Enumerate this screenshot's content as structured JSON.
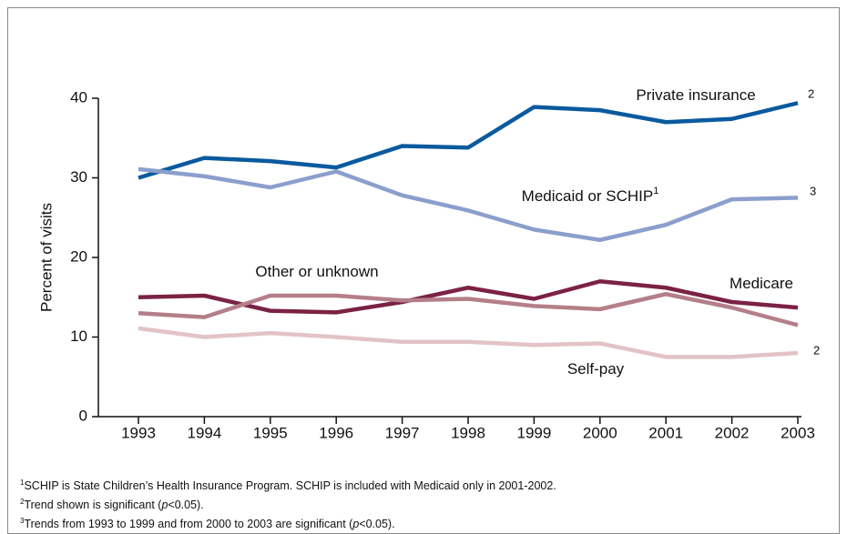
{
  "chart_data": {
    "type": "line",
    "y_label": "Percent of visits",
    "x": [
      1993,
      1994,
      1995,
      1996,
      1997,
      1998,
      1999,
      2000,
      2001,
      2002,
      2003
    ],
    "xlim": [
      1993,
      2003
    ],
    "xticks": [
      1993,
      1994,
      1995,
      1996,
      1997,
      1998,
      1999,
      2000,
      2001,
      2002,
      2003
    ],
    "ylim": [
      0,
      40
    ],
    "yticks": [
      0,
      10,
      20,
      30,
      40
    ],
    "grid": false,
    "series": [
      {
        "name": "Private insurance",
        "end_note": "2",
        "color": "#0a5a9e",
        "values": [
          30.0,
          32.5,
          32.1,
          31.3,
          34.0,
          33.8,
          38.9,
          38.5,
          37.0,
          37.4,
          39.4
        ]
      },
      {
        "name": "Medicaid or SCHIP",
        "name_sup": "1",
        "end_note": "3",
        "color": "#8b9fcd",
        "values": [
          31.1,
          30.2,
          28.8,
          30.8,
          27.8,
          25.9,
          23.5,
          22.2,
          24.1,
          27.3,
          27.5
        ]
      },
      {
        "name": "Medicare",
        "color": "#7b2244",
        "values": [
          15.0,
          15.2,
          13.3,
          13.1,
          14.4,
          16.2,
          14.8,
          17.0,
          16.2,
          14.4,
          13.7
        ]
      },
      {
        "name": "Other or unknown",
        "color": "#b47f88",
        "values": [
          13.0,
          12.5,
          15.2,
          15.2,
          14.6,
          14.8,
          13.9,
          13.5,
          15.4,
          13.7,
          11.5
        ]
      },
      {
        "name": "Self-pay",
        "end_note": "2",
        "color": "#e3c3c7",
        "values": [
          11.1,
          10.0,
          10.5,
          10.0,
          9.4,
          9.4,
          9.0,
          9.2,
          7.5,
          7.5,
          8.0
        ]
      }
    ],
    "footnotes": [
      {
        "mark": "1",
        "parts": [
          "SCHIP is State Children’s Health Insurance Program.  SCHIP is included with Medicaid only in 2001-2002."
        ]
      },
      {
        "mark": "2",
        "parts": [
          "Trend shown is significant (",
          "p",
          "<0.05)."
        ]
      },
      {
        "mark": "3",
        "parts": [
          "Trends from 1993 to 1999 and from 2000 to 2003 are significant (",
          "p",
          "<0.05)."
        ]
      }
    ]
  }
}
